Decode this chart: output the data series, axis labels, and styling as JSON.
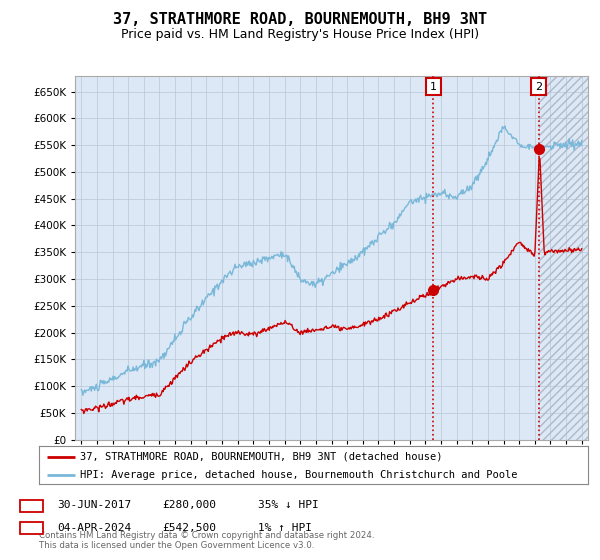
{
  "title": "37, STRATHMORE ROAD, BOURNEMOUTH, BH9 3NT",
  "subtitle": "Price paid vs. HM Land Registry's House Price Index (HPI)",
  "legend_line1": "37, STRATHMORE ROAD, BOURNEMOUTH, BH9 3NT (detached house)",
  "legend_line2": "HPI: Average price, detached house, Bournemouth Christchurch and Poole",
  "annotation1_date": "30-JUN-2017",
  "annotation1_price": "£280,000",
  "annotation1_hpi": "35% ↓ HPI",
  "annotation2_date": "04-APR-2024",
  "annotation2_price": "£542,500",
  "annotation2_hpi": "1% ↑ HPI",
  "footer": "Contains HM Land Registry data © Crown copyright and database right 2024.\nThis data is licensed under the Open Government Licence v3.0.",
  "hpi_color": "#7ab8d9",
  "price_color": "#cc0000",
  "annotation_color": "#cc0000",
  "background_color": "#dce8f5",
  "grid_color": "#b8c8d8",
  "ylim": [
    0,
    680000
  ],
  "yticks": [
    0,
    50000,
    100000,
    150000,
    200000,
    250000,
    300000,
    350000,
    400000,
    450000,
    500000,
    550000,
    600000,
    650000
  ],
  "sale1_year": 2017.5,
  "sale1_price": 280000,
  "sale2_year": 2024.25,
  "sale2_price": 542500,
  "xlim_left": 1994.6,
  "xlim_right": 2027.4,
  "title_fontsize": 11,
  "subtitle_fontsize": 9,
  "tick_fontsize": 7.5
}
